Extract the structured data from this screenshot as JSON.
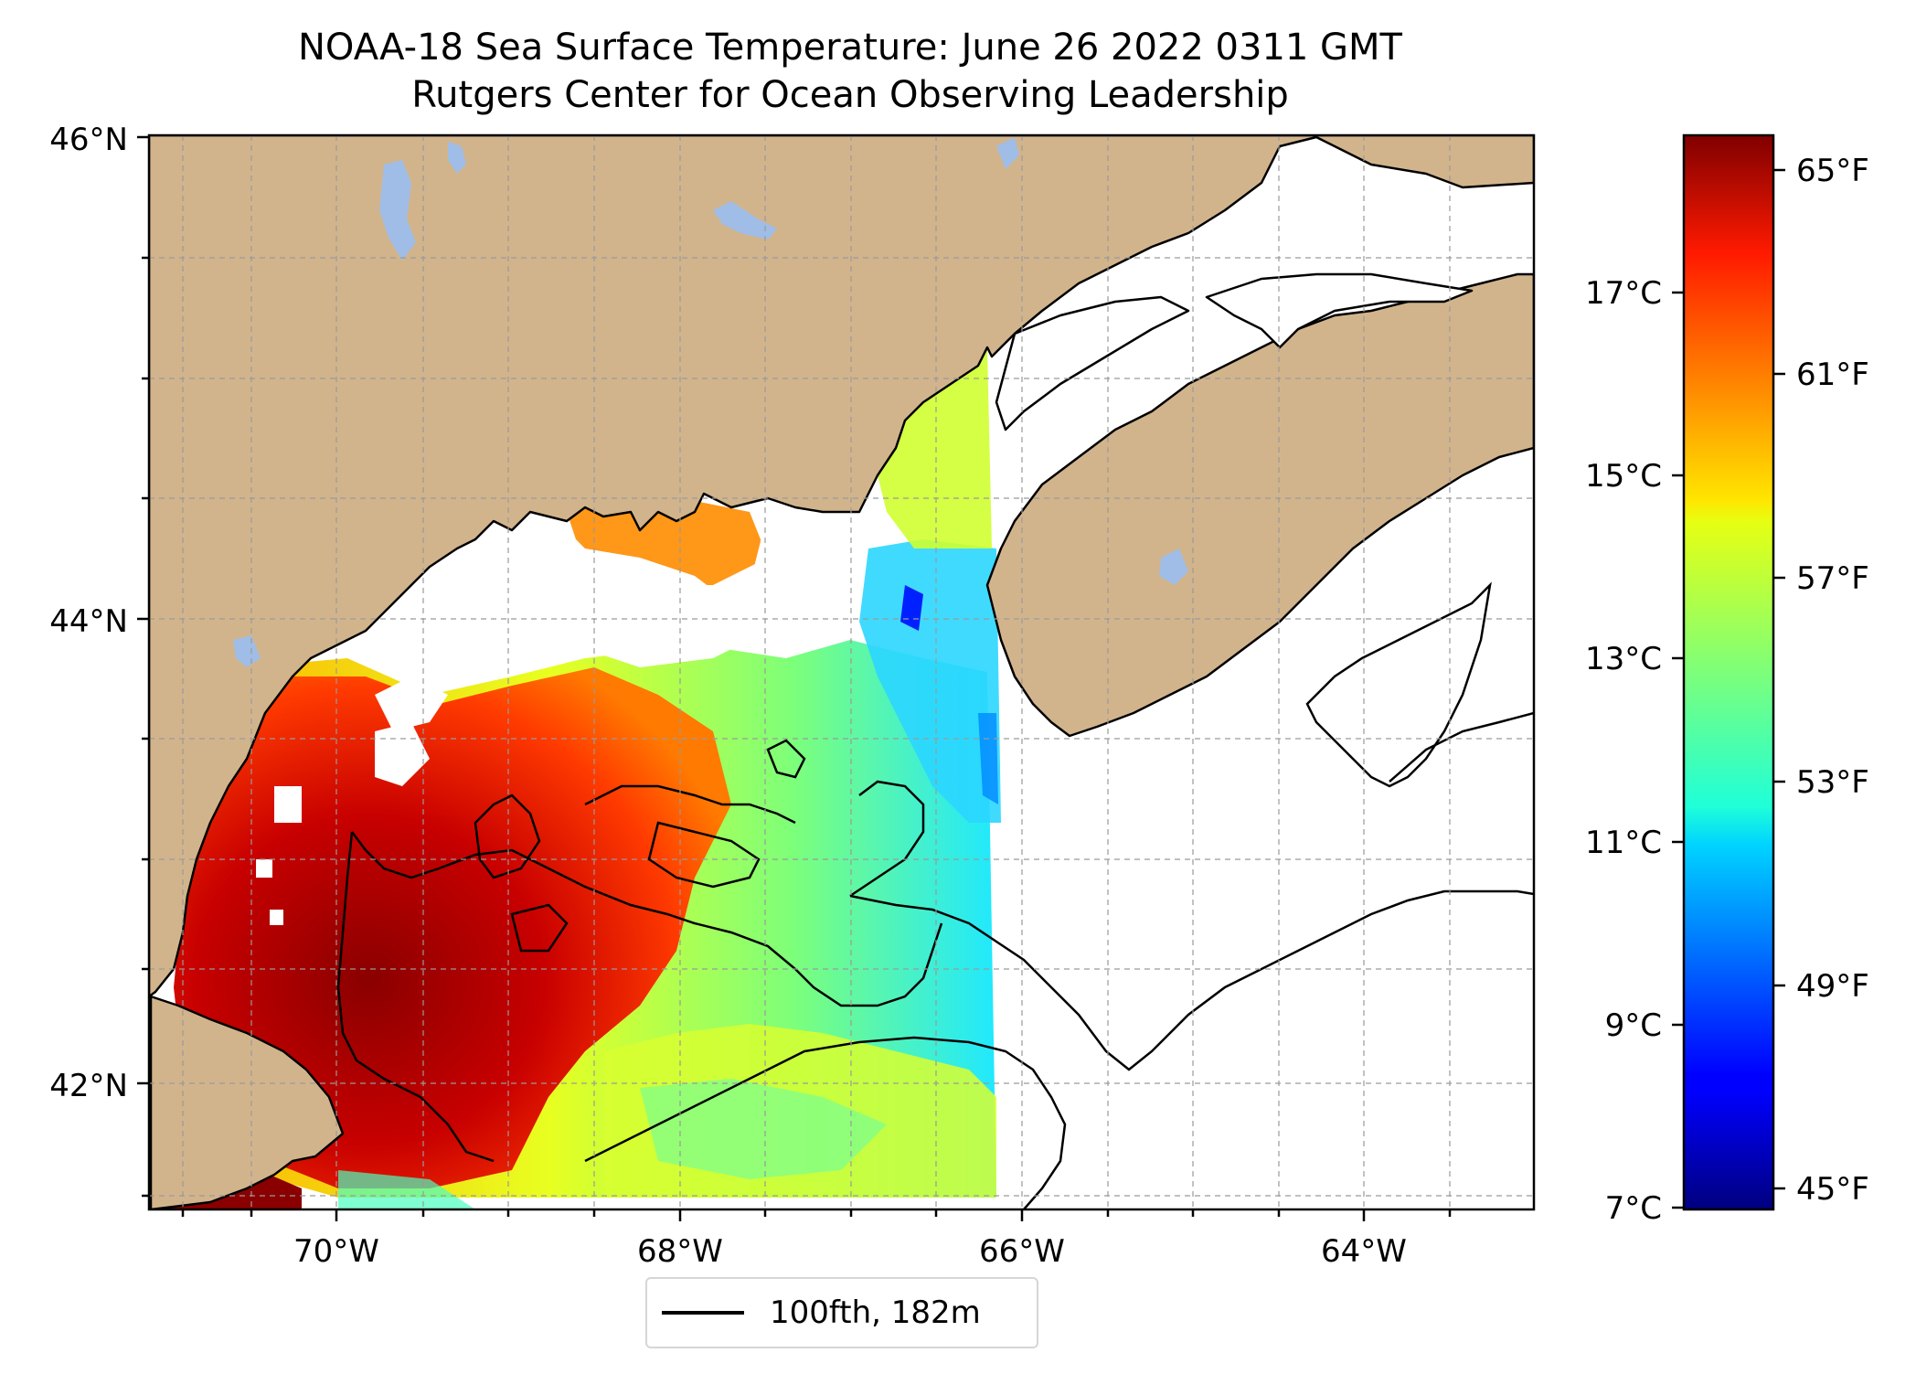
{
  "title": "NOAA-18 Sea Surface Temperature: June 26 2022 0311 GMT",
  "subtitle": "Rutgers Center for Ocean Observing Leadership",
  "map": {
    "lat_ticks": [
      "46°N",
      "44°N",
      "42°N"
    ],
    "lon_ticks": [
      "70°W",
      "68°W",
      "66°W",
      "64°W"
    ],
    "extent": {
      "lon": [
        -71.1,
        -63.0
      ],
      "lat": [
        41.5,
        46.0
      ]
    },
    "gridlines": true,
    "land_color": "#d2b48c",
    "lake_color": "#9fbde6",
    "no_data_color": "#ffffff"
  },
  "colorbar": {
    "celsius_ticks": [
      "17°C",
      "15°C",
      "13°C",
      "11°C",
      "9°C",
      "7°C"
    ],
    "fahrenheit_ticks": [
      "65°F",
      "61°F",
      "57°F",
      "53°F",
      "49°F",
      "45°F"
    ],
    "colormap": "jet",
    "range_celsius": [
      7,
      18.7
    ]
  },
  "legend": {
    "label": "100fth, 182m"
  }
}
